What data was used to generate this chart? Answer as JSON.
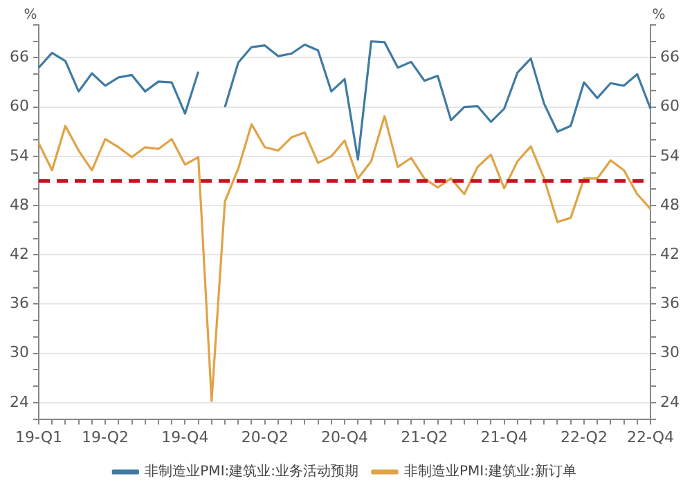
{
  "chart_data": {
    "type": "line",
    "categories": [
      "19-Q1",
      null,
      null,
      null,
      null,
      "19-Q2",
      null,
      null,
      null,
      null,
      null,
      "19-Q4",
      null,
      null,
      null,
      null,
      null,
      "20-Q2",
      null,
      null,
      null,
      null,
      null,
      "20-Q4",
      null,
      null,
      null,
      null,
      null,
      "21-Q2",
      null,
      null,
      null,
      null,
      null,
      "21-Q4",
      null,
      null,
      null,
      null,
      null,
      "22-Q2",
      null,
      null,
      null,
      null,
      "22-Q4"
    ],
    "series": [
      {
        "name": "非制造业PMI:建筑业:业务活动预期",
        "color": "#3f7ba3",
        "values": [
          64.8,
          66.6,
          65.6,
          61.9,
          64.1,
          62.6,
          63.6,
          63.9,
          61.9,
          63.1,
          63,
          59.2,
          64.3,
          null,
          60,
          65.4,
          67.3,
          67.5,
          66.2,
          66.5,
          67.6,
          66.9,
          61.9,
          63.4,
          53.6,
          68,
          67.9,
          64.8,
          65.5,
          63.2,
          63.8,
          58.4,
          60,
          60.1,
          58.2,
          59.8,
          64.2,
          65.9,
          60.4,
          57,
          57.7,
          63,
          61.1,
          62.9,
          62.6,
          64,
          59.8
        ]
      },
      {
        "name": "非制造业PMI:建筑业:新订单",
        "color": "#e0a346",
        "values": [
          55.6,
          52.3,
          57.7,
          54.7,
          52.3,
          56.1,
          55.1,
          53.9,
          55.1,
          54.9,
          56.1,
          53,
          53.9,
          24.2,
          48.5,
          52.5,
          57.9,
          55.1,
          54.7,
          56.3,
          56.9,
          53.2,
          54,
          55.9,
          51.3,
          53.4,
          58.9,
          52.7,
          53.8,
          51.3,
          50.2,
          51.3,
          49.4,
          52.7,
          54.2,
          50.1,
          53.4,
          55.2,
          51.3,
          46,
          46.5,
          51.3,
          51.3,
          53.5,
          52.3,
          49.4,
          47.6
        ]
      }
    ],
    "ylabel": "%",
    "y2label": "%",
    "ylim": [
      22,
      70
    ],
    "yticks": [
      {
        "value": 22,
        "label": null
      },
      24,
      {
        "value": 26,
        "label": null
      },
      {
        "value": 28,
        "label": null
      },
      30,
      {
        "value": 32,
        "label": null
      },
      {
        "value": 34,
        "label": null
      },
      36,
      {
        "value": 38,
        "label": null
      },
      {
        "value": 40,
        "label": null
      },
      42,
      {
        "value": 44,
        "label": null
      },
      {
        "value": 46,
        "label": null
      },
      48,
      {
        "value": 50,
        "label": null
      },
      {
        "value": 52,
        "label": null
      },
      54,
      {
        "value": 56,
        "label": null
      },
      {
        "value": 58,
        "label": null
      },
      60,
      {
        "value": 62,
        "label": null
      },
      {
        "value": 64,
        "label": null
      },
      66,
      {
        "value": 68,
        "label": null
      },
      {
        "value": 70,
        "label": null
      }
    ],
    "y2lim": [
      22,
      70
    ],
    "y2ticks": [
      {
        "value": 22,
        "label": null
      },
      24,
      {
        "value": 26,
        "label": null
      },
      {
        "value": 28,
        "label": null
      },
      30,
      {
        "value": 32,
        "label": null
      },
      {
        "value": 34,
        "label": null
      },
      36,
      {
        "value": 38,
        "label": null
      },
      {
        "value": 40,
        "label": null
      },
      42,
      {
        "value": 44,
        "label": null
      },
      {
        "value": 46,
        "label": null
      },
      48,
      {
        "value": 50,
        "label": null
      },
      {
        "value": 52,
        "label": null
      },
      54,
      {
        "value": 56,
        "label": null
      },
      {
        "value": 58,
        "label": null
      },
      60,
      {
        "value": 62,
        "label": null
      },
      {
        "value": 64,
        "label": null
      },
      66,
      {
        "value": 68,
        "label": null
      },
      {
        "value": 70,
        "label": null
      }
    ],
    "ref_lines": [
      {
        "axis": "y",
        "value": 51,
        "color": "#c0141e",
        "line_style": "dashed"
      }
    ],
    "grid": "y",
    "legend": "bottom",
    "marker": "none",
    "line_style": "solid"
  }
}
